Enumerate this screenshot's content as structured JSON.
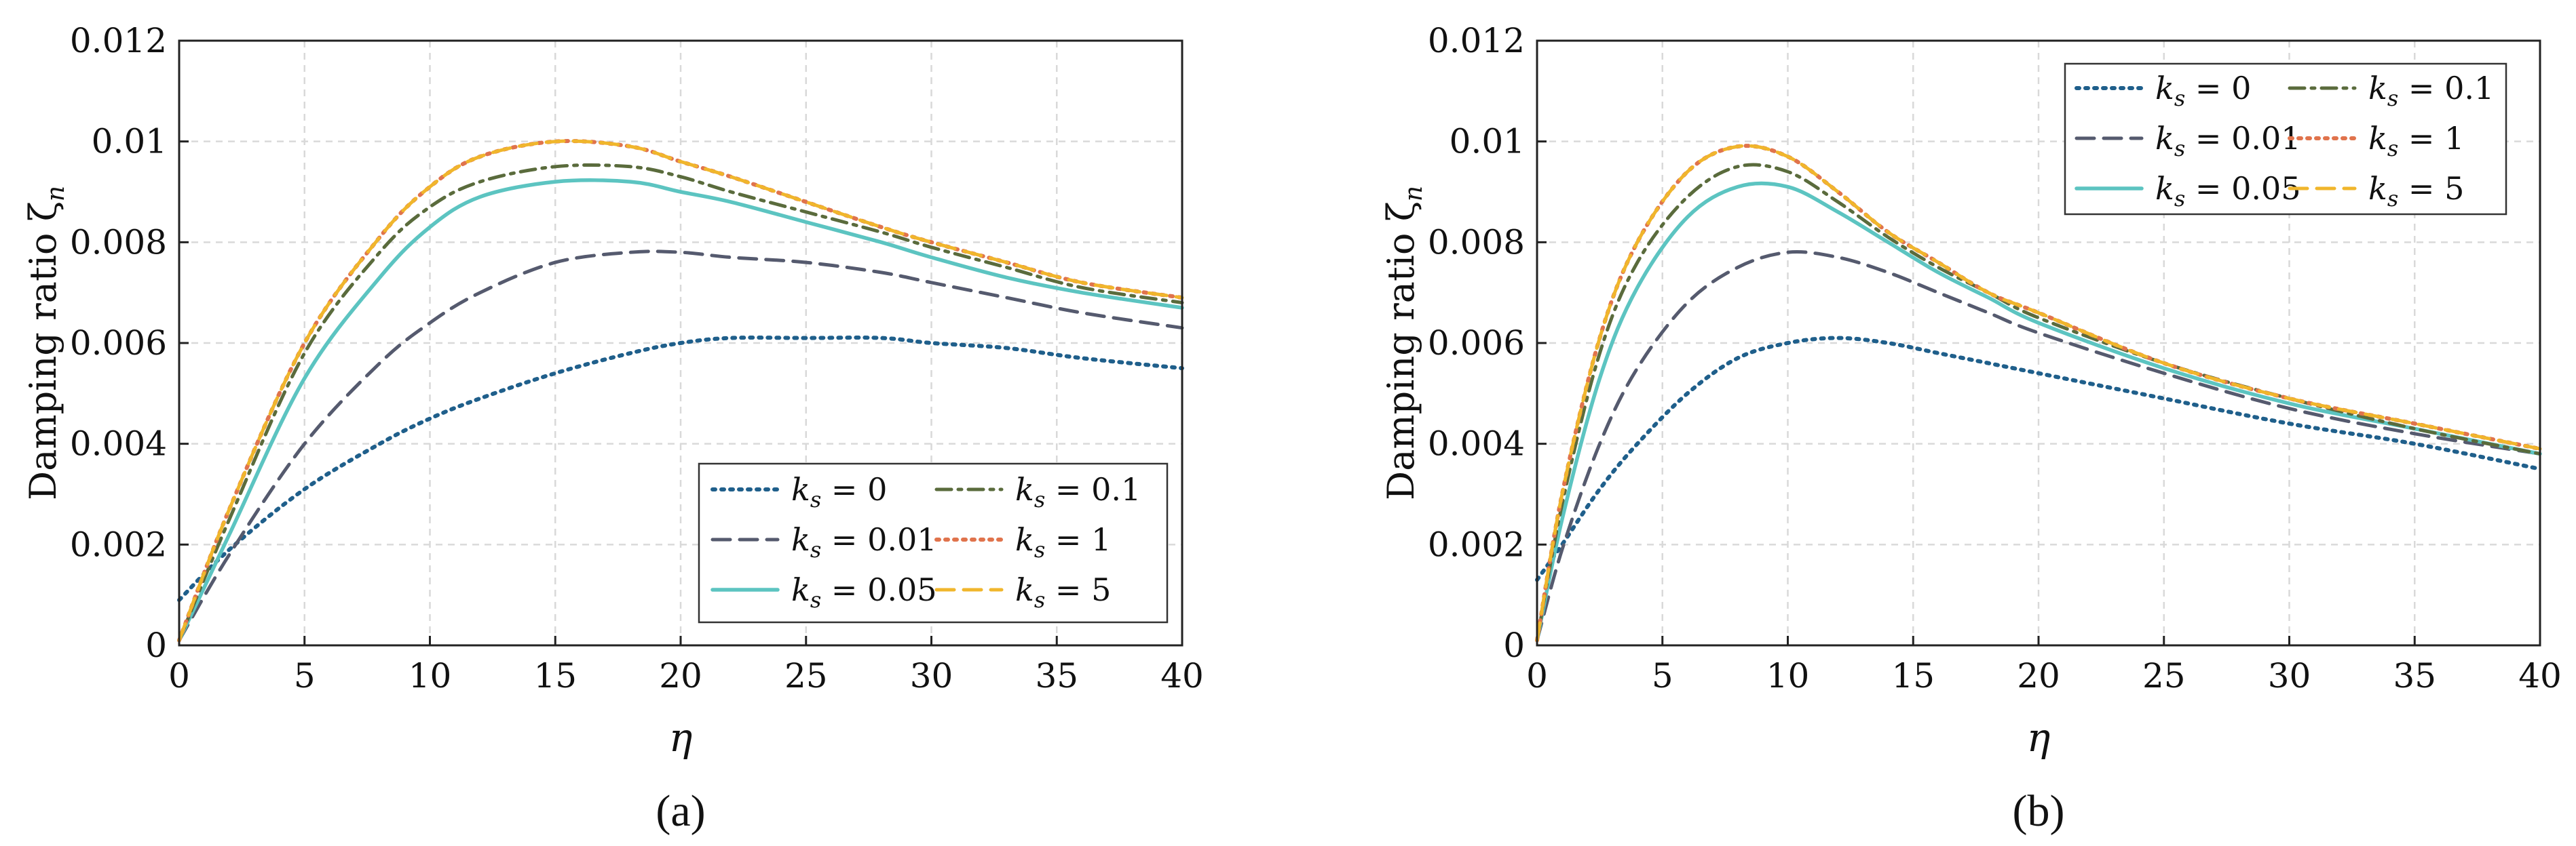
{
  "chart_data": [
    {
      "type": "line",
      "panel": "a",
      "caption": "(a)",
      "xlabel": "η",
      "ylabel": "Damping ratio ζ",
      "ylabel_subscript": "n",
      "xlim": [
        0,
        40
      ],
      "ylim": [
        0,
        0.012
      ],
      "xticks": [
        "0",
        "5",
        "10",
        "15",
        "20",
        "25",
        "30",
        "35",
        "40"
      ],
      "yticks": [
        "0",
        "0.002",
        "0.004",
        "0.006",
        "0.008",
        "0.01",
        "0.012"
      ],
      "grid": true,
      "legend_position": "bottom-right",
      "series": [
        {
          "name": "k_s = 0",
          "legend_label": "ks = 0",
          "color": "#1f5f8b",
          "style": "dotted",
          "x": [
            0,
            2,
            5,
            8,
            10,
            12,
            15,
            18,
            20,
            22,
            25,
            28,
            30,
            33,
            36,
            40
          ],
          "y": [
            0.0009,
            0.0019,
            0.0031,
            0.004,
            0.0045,
            0.0049,
            0.0054,
            0.0058,
            0.006,
            0.0061,
            0.0061,
            0.0061,
            0.006,
            0.0059,
            0.0057,
            0.0055
          ]
        },
        {
          "name": "k_s = 0.01",
          "legend_label": "ks = 0.01",
          "color": "#555a6e",
          "style": "dashed",
          "x": [
            0,
            2,
            5,
            8,
            10,
            12,
            15,
            18,
            20,
            22,
            25,
            28,
            30,
            33,
            36,
            40
          ],
          "y": [
            0.0001,
            0.0018,
            0.004,
            0.0056,
            0.0064,
            0.007,
            0.0076,
            0.0078,
            0.0078,
            0.0077,
            0.0076,
            0.0074,
            0.0072,
            0.0069,
            0.0066,
            0.0063
          ]
        },
        {
          "name": "k_s = 0.05",
          "legend_label": "ks = 0.05",
          "color": "#5cc4c1",
          "style": "solid",
          "x": [
            0,
            2,
            5,
            8,
            10,
            12,
            15,
            18,
            20,
            22,
            25,
            28,
            30,
            33,
            36,
            40
          ],
          "y": [
            0.0001,
            0.0022,
            0.0053,
            0.0073,
            0.0083,
            0.0089,
            0.0092,
            0.0092,
            0.009,
            0.0088,
            0.0084,
            0.008,
            0.0077,
            0.0073,
            0.007,
            0.0067
          ]
        },
        {
          "name": "k_s = 0.1",
          "legend_label": "ks = 0.1",
          "color": "#5a6b3c",
          "style": "dashdot",
          "x": [
            0,
            2,
            5,
            8,
            10,
            12,
            15,
            18,
            20,
            22,
            25,
            28,
            30,
            33,
            36,
            40
          ],
          "y": [
            0.0001,
            0.0025,
            0.0058,
            0.0078,
            0.0087,
            0.0092,
            0.0095,
            0.0095,
            0.0093,
            0.009,
            0.0086,
            0.0082,
            0.0079,
            0.0075,
            0.0071,
            0.0068
          ]
        },
        {
          "name": "k_s = 1",
          "legend_label": "ks = 1",
          "color": "#e0734c",
          "style": "dotted",
          "x": [
            0,
            2,
            5,
            8,
            10,
            12,
            15,
            18,
            20,
            22,
            25,
            28,
            30,
            33,
            36,
            40
          ],
          "y": [
            0.0001,
            0.0027,
            0.006,
            0.0081,
            0.0091,
            0.0097,
            0.01,
            0.0099,
            0.0096,
            0.0093,
            0.0088,
            0.0083,
            0.008,
            0.0076,
            0.0072,
            0.0069
          ]
        },
        {
          "name": "k_s = 5",
          "legend_label": "ks = 5",
          "color": "#f0b62c",
          "style": "dashed",
          "x": [
            0,
            2,
            5,
            8,
            10,
            12,
            15,
            18,
            20,
            22,
            25,
            28,
            30,
            33,
            36,
            40
          ],
          "y": [
            0.0001,
            0.0027,
            0.006,
            0.0081,
            0.0091,
            0.0097,
            0.01,
            0.0099,
            0.0096,
            0.0093,
            0.0088,
            0.0083,
            0.008,
            0.0076,
            0.0072,
            0.0069
          ]
        }
      ]
    },
    {
      "type": "line",
      "panel": "b",
      "caption": "(b)",
      "xlabel": "η",
      "ylabel": "Damping ratio ζ",
      "ylabel_subscript": "n",
      "xlim": [
        0,
        40
      ],
      "ylim": [
        0,
        0.012
      ],
      "xticks": [
        "0",
        "5",
        "10",
        "15",
        "20",
        "25",
        "30",
        "35",
        "40"
      ],
      "yticks": [
        "0",
        "0.002",
        "0.004",
        "0.006",
        "0.008",
        "0.01",
        "0.012"
      ],
      "grid": true,
      "legend_position": "top-right",
      "series": [
        {
          "name": "k_s = 0",
          "legend_label": "ks = 0",
          "color": "#1f5f8b",
          "style": "dotted",
          "x": [
            0,
            1,
            2.5,
            4,
            6,
            8,
            10,
            12,
            14,
            16,
            18,
            20,
            25,
            30,
            35,
            40
          ],
          "y": [
            0.0013,
            0.002,
            0.0031,
            0.004,
            0.005,
            0.0057,
            0.006,
            0.0061,
            0.006,
            0.0058,
            0.0056,
            0.0054,
            0.0049,
            0.0044,
            0.004,
            0.0035
          ]
        },
        {
          "name": "k_s = 0.01",
          "legend_label": "ks = 0.01",
          "color": "#555a6e",
          "style": "dashed",
          "x": [
            0,
            1,
            2.5,
            4,
            6,
            8,
            10,
            12,
            14,
            16,
            18,
            20,
            25,
            30,
            35,
            40
          ],
          "y": [
            0.0001,
            0.0019,
            0.004,
            0.0055,
            0.0068,
            0.0075,
            0.0078,
            0.0077,
            0.0074,
            0.007,
            0.0066,
            0.0062,
            0.0054,
            0.0047,
            0.0042,
            0.0038
          ]
        },
        {
          "name": "k_s = 0.05",
          "legend_label": "ks = 0.05",
          "color": "#5cc4c1",
          "style": "solid",
          "x": [
            0,
            1,
            2.5,
            4,
            6,
            8,
            10,
            12,
            14,
            16,
            18,
            20,
            25,
            30,
            35,
            40
          ],
          "y": [
            0.0001,
            0.0025,
            0.0053,
            0.0071,
            0.0085,
            0.0091,
            0.0091,
            0.0086,
            0.008,
            0.0074,
            0.0069,
            0.0064,
            0.0055,
            0.0048,
            0.0043,
            0.0038
          ]
        },
        {
          "name": "k_s = 0.1",
          "legend_label": "ks = 0.1",
          "color": "#5a6b3c",
          "style": "dashdot",
          "x": [
            0,
            1,
            2.5,
            4,
            6,
            8,
            10,
            12,
            14,
            16,
            18,
            20,
            25,
            30,
            35,
            40
          ],
          "y": [
            0.0001,
            0.0028,
            0.0058,
            0.0076,
            0.0089,
            0.0095,
            0.0094,
            0.0088,
            0.0081,
            0.0075,
            0.007,
            0.0065,
            0.0056,
            0.0049,
            0.0043,
            0.0038
          ]
        },
        {
          "name": "k_s = 1",
          "legend_label": "ks = 1",
          "color": "#e0734c",
          "style": "dotted",
          "x": [
            0,
            1,
            2.5,
            4,
            6,
            8,
            10,
            12,
            14,
            16,
            18,
            20,
            25,
            30,
            35,
            40
          ],
          "y": [
            0.0001,
            0.003,
            0.0061,
            0.008,
            0.0094,
            0.0099,
            0.0097,
            0.009,
            0.0082,
            0.0076,
            0.007,
            0.0066,
            0.0056,
            0.0049,
            0.0044,
            0.0039
          ]
        },
        {
          "name": "k_s = 5",
          "legend_label": "ks = 5",
          "color": "#f0b62c",
          "style": "dashed",
          "x": [
            0,
            1,
            2.5,
            4,
            6,
            8,
            10,
            12,
            14,
            16,
            18,
            20,
            25,
            30,
            35,
            40
          ],
          "y": [
            0.0001,
            0.003,
            0.0061,
            0.008,
            0.0094,
            0.0099,
            0.0097,
            0.009,
            0.0082,
            0.0076,
            0.007,
            0.0066,
            0.0056,
            0.0049,
            0.0044,
            0.0039
          ]
        }
      ]
    }
  ]
}
